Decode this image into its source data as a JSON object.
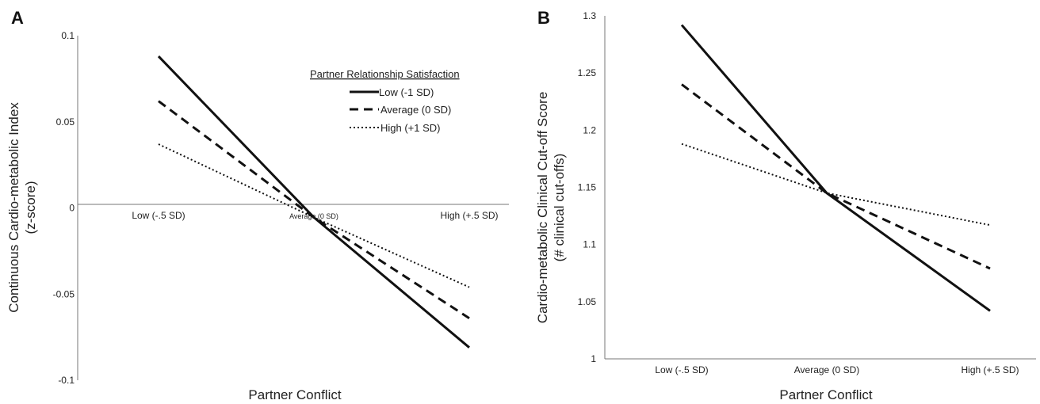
{
  "panels": [
    {
      "letter": "A",
      "chart_data": {
        "type": "line",
        "title": "",
        "xlabel": "Partner Conflict",
        "ylabel": "Continuous Cardio-metabolic Index",
        "ylabel_sub": "(z-score)",
        "categories": [
          "Low (-.5 SD)",
          "Average (0 SD)",
          "High (+.5 SD)"
        ],
        "ylim": [
          -0.1,
          0.1
        ],
        "yticks": [
          0.1,
          0.05,
          0,
          -0.05,
          -0.1
        ],
        "ytick_labels": [
          "0.1",
          "0.05",
          "0",
          "-0.05",
          "-0.1"
        ],
        "grid": false,
        "legend": {
          "title": "Partner Relationship Satisfaction",
          "placement": "top-right"
        },
        "series": [
          {
            "name": "Low (-1 SD)",
            "style": "solid",
            "values": [
              0.088,
              -0.0055,
              -0.081
            ]
          },
          {
            "name": "Average (0 SD)",
            "style": "dashed",
            "values": [
              0.062,
              -0.0055,
              -0.064
            ]
          },
          {
            "name": "High (+1 SD)",
            "style": "dotted",
            "values": [
              0.037,
              -0.0055,
              -0.046
            ]
          }
        ]
      }
    },
    {
      "letter": "B",
      "chart_data": {
        "type": "line",
        "title": "",
        "xlabel": "Partner Conflict",
        "ylabel": "Cardio-metabolic  Clinical Cut-off Score",
        "ylabel_sub": "(# clinical cut-offs)",
        "categories": [
          "Low (-.5 SD)",
          "Average (0 SD)",
          "High (+.5 SD)"
        ],
        "ylim": [
          1.0,
          1.3
        ],
        "yticks": [
          1.3,
          1.25,
          1.2,
          1.15,
          1.1,
          1.05,
          1.0
        ],
        "ytick_labels": [
          "1.3",
          "1.25",
          "1.2",
          "1.15",
          "1.1",
          "1.05",
          "1"
        ],
        "grid": false,
        "series": [
          {
            "name": "Low (-1 SD)",
            "style": "solid",
            "values": [
              1.292,
              1.145,
              1.042
            ]
          },
          {
            "name": "Average (0 SD)",
            "style": "dashed",
            "values": [
              1.24,
              1.145,
              1.079
            ]
          },
          {
            "name": "High (+1 SD)",
            "style": "dotted",
            "values": [
              1.188,
              1.145,
              1.117
            ]
          }
        ]
      }
    }
  ]
}
